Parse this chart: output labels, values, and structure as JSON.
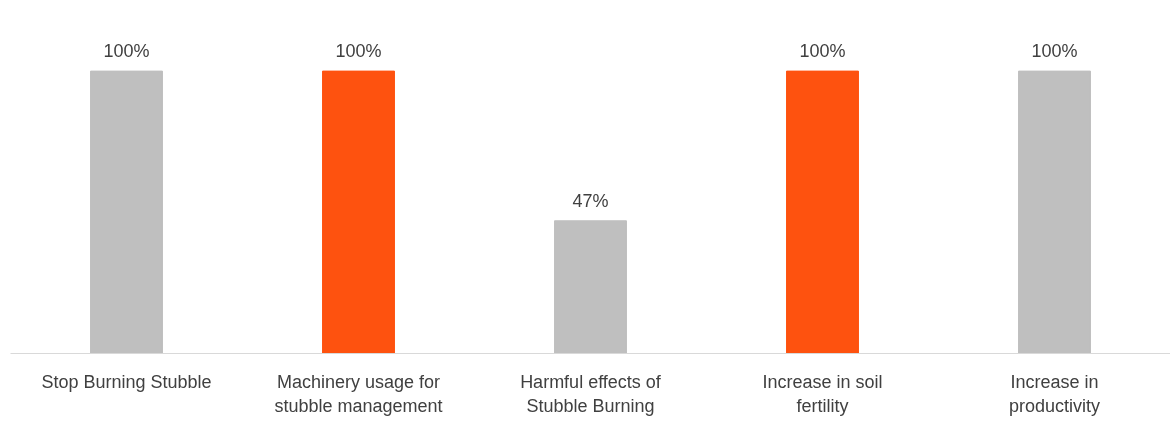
{
  "chart_data": {
    "type": "bar",
    "categories": [
      "Stop Burning Stubble",
      "Machinery usage for stubble management",
      "Harmful effects of Stubble Burning",
      "Increase in soil fertility",
      "Increase in productivity"
    ],
    "values": [
      100,
      100,
      47,
      100,
      100
    ],
    "colors": [
      "#bfbfbf",
      "#fe520f",
      "#bfbfbf",
      "#fe520f",
      "#bfbfbf"
    ],
    "value_labels": [
      "100%",
      "100%",
      "47%",
      "100%",
      "100%"
    ]
  }
}
